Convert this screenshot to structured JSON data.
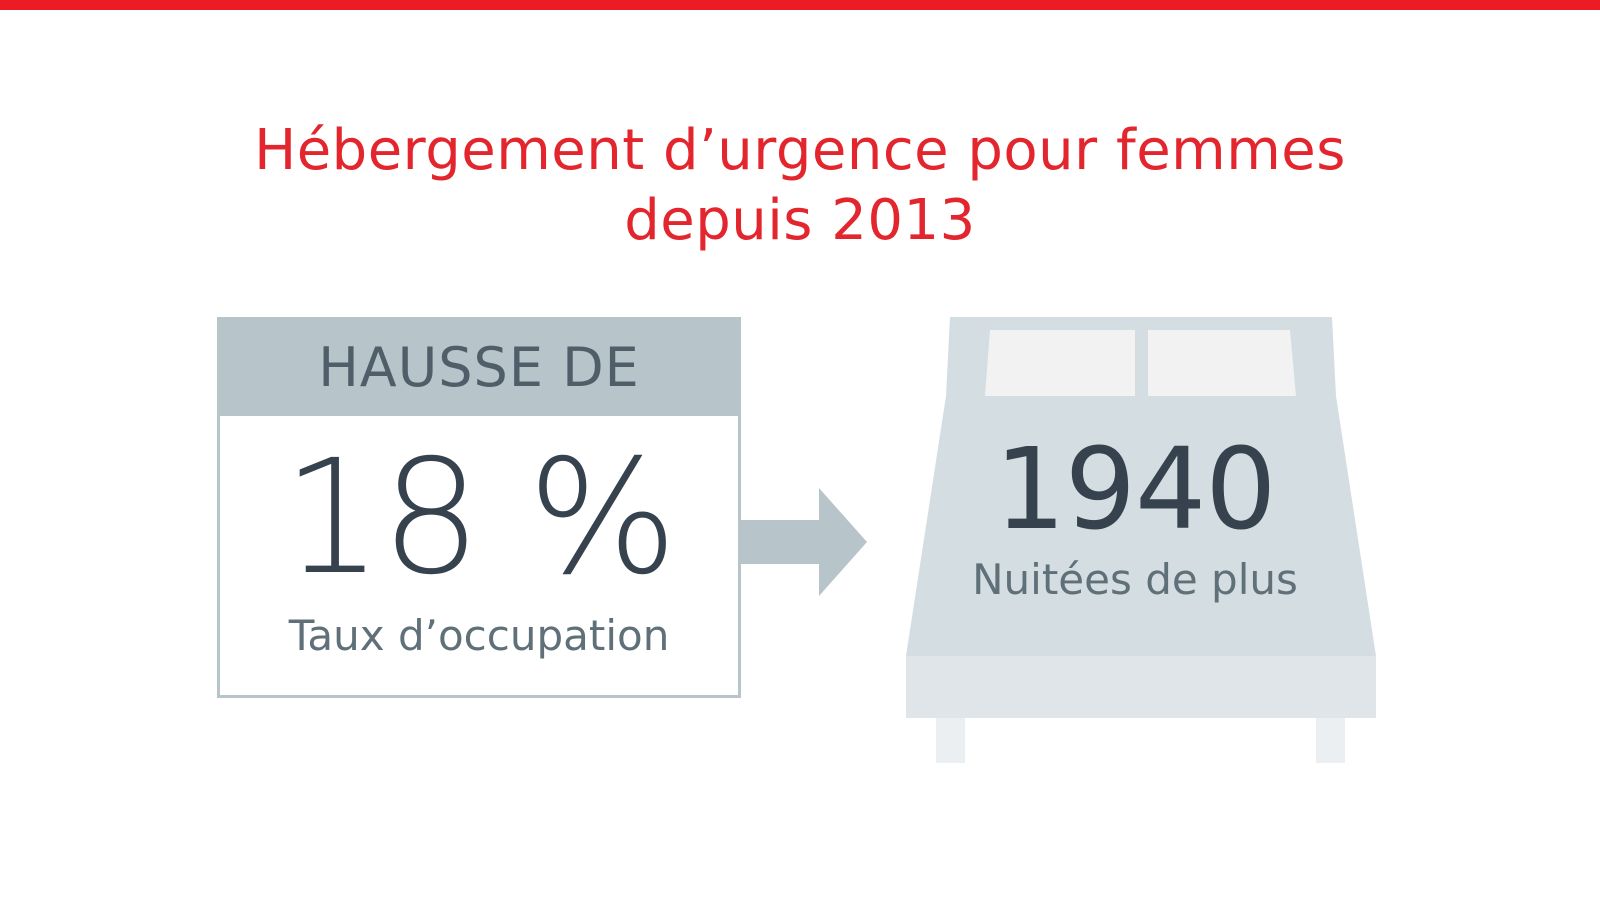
{
  "title": {
    "line1": "Hébergement d’urgence pour femmes",
    "line2": "depuis 2013"
  },
  "occupancy": {
    "header": "HAUSSE DE",
    "value": "18 %",
    "caption": "Taux d’occupation"
  },
  "nights": {
    "value": "1940",
    "caption": "Nuitées de plus"
  },
  "colors": {
    "accent_red": "#ed1c24",
    "grey_blue": "#b7c5cb",
    "dark_text": "#36434e",
    "mid_text": "#5f7079"
  },
  "icons": [
    "arrow-right-icon",
    "bed-icon"
  ]
}
